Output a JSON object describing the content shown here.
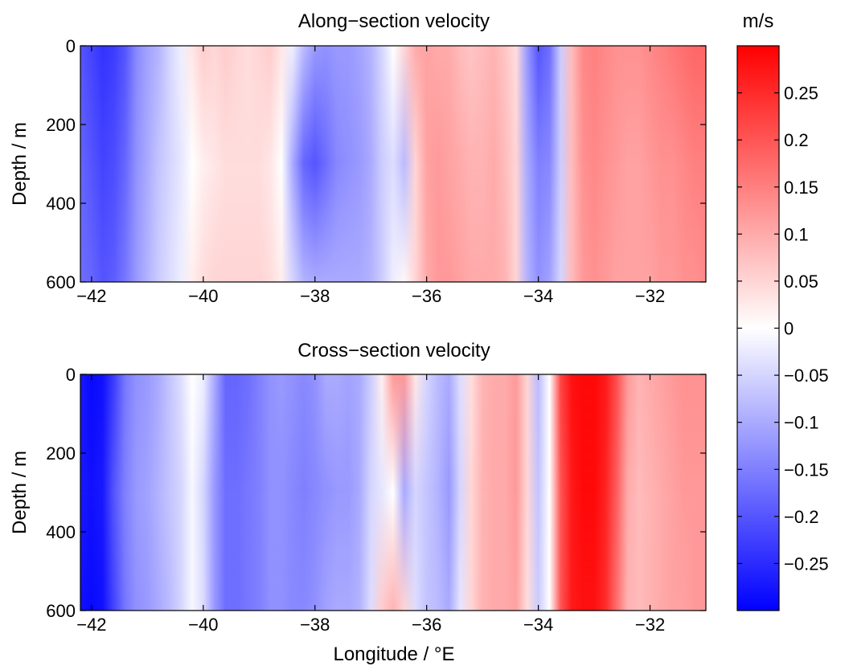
{
  "colorbar": {
    "unit_label": "m/s",
    "range": [
      -0.3,
      0.3
    ],
    "ticks": [
      -0.25,
      -0.2,
      -0.15,
      -0.1,
      -0.05,
      0,
      0.05,
      0.1,
      0.15,
      0.2,
      0.25
    ],
    "tick_labels": [
      "−0.25",
      "−0.2",
      "−0.15",
      "−0.1",
      "−0.05",
      "0",
      "0.05",
      "0.1",
      "0.15",
      "0.2",
      "0.25"
    ],
    "colors": {
      "negative_end": "#0000ff",
      "zero": "#ffffff",
      "positive_end": "#ff0000"
    }
  },
  "chart_data": [
    {
      "type": "heatmap",
      "title": "Along−section velocity",
      "xlabel": "",
      "ylabel": "Depth / m",
      "xlim": [
        -42.2,
        -31
      ],
      "ylim": [
        0,
        600
      ],
      "y_reversed": true,
      "xticks": [
        -42,
        -40,
        -38,
        -36,
        -34,
        -32
      ],
      "xtick_labels": [
        "−42",
        "−40",
        "−38",
        "−36",
        "−34",
        "−32"
      ],
      "yticks": [
        0,
        200,
        400,
        600
      ],
      "ytick_labels": [
        "0",
        "200",
        "400",
        "600"
      ],
      "x": [
        -42.2,
        -42.0,
        -41.8,
        -41.6,
        -41.4,
        -41.2,
        -41.0,
        -40.8,
        -40.6,
        -40.4,
        -40.2,
        -40.0,
        -39.8,
        -39.6,
        -39.4,
        -39.2,
        -39.0,
        -38.8,
        -38.6,
        -38.4,
        -38.2,
        -38.0,
        -37.8,
        -37.6,
        -37.4,
        -37.2,
        -37.0,
        -36.8,
        -36.6,
        -36.4,
        -36.2,
        -36.0,
        -35.8,
        -35.6,
        -35.4,
        -35.2,
        -35.0,
        -34.8,
        -34.6,
        -34.4,
        -34.2,
        -34.0,
        -33.8,
        -33.6,
        -33.4,
        -33.2,
        -33.0,
        -32.8,
        -32.6,
        -32.4,
        -32.2,
        -32.0,
        -31.8,
        -31.6,
        -31.4,
        -31.2,
        -31.0
      ],
      "depth": [
        0,
        300,
        600
      ],
      "values": [
        [
          -0.2,
          -0.22,
          -0.24,
          -0.23,
          -0.2,
          -0.14,
          -0.11,
          -0.09,
          -0.05,
          -0.02,
          0.03,
          0.06,
          0.05,
          0.06,
          0.05,
          0.04,
          0.05,
          0.06,
          0.03,
          -0.02,
          -0.08,
          -0.12,
          -0.13,
          -0.12,
          -0.12,
          -0.11,
          -0.09,
          -0.05,
          0.0,
          0.05,
          0.1,
          0.11,
          0.1,
          0.1,
          0.08,
          0.07,
          0.08,
          0.09,
          0.07,
          0.04,
          -0.12,
          -0.2,
          -0.17,
          -0.06,
          0.08,
          0.14,
          0.15,
          0.14,
          0.13,
          0.13,
          0.13,
          0.14,
          0.15,
          0.16,
          0.17,
          0.18,
          0.18
        ],
        [
          -0.18,
          -0.2,
          -0.22,
          -0.21,
          -0.18,
          -0.13,
          -0.1,
          -0.07,
          -0.05,
          -0.03,
          0.0,
          0.02,
          0.03,
          0.04,
          0.04,
          0.04,
          0.04,
          0.03,
          0.0,
          -0.1,
          -0.18,
          -0.2,
          -0.17,
          -0.14,
          -0.13,
          -0.12,
          -0.1,
          -0.06,
          -0.04,
          -0.08,
          0.05,
          0.11,
          0.12,
          0.11,
          0.1,
          0.09,
          0.09,
          0.1,
          0.08,
          0.05,
          -0.1,
          -0.15,
          -0.14,
          -0.06,
          0.08,
          0.13,
          0.14,
          0.13,
          0.12,
          0.11,
          0.11,
          0.12,
          0.13,
          0.13,
          0.14,
          0.15,
          0.15
        ],
        [
          -0.17,
          -0.18,
          -0.2,
          -0.19,
          -0.16,
          -0.12,
          -0.09,
          -0.06,
          -0.04,
          -0.02,
          0.02,
          0.04,
          0.05,
          0.05,
          0.05,
          0.05,
          0.05,
          0.04,
          0.02,
          -0.05,
          -0.09,
          -0.1,
          -0.1,
          -0.1,
          -0.1,
          -0.1,
          -0.09,
          -0.06,
          -0.02,
          0.01,
          0.05,
          0.1,
          0.12,
          0.12,
          0.11,
          0.1,
          0.1,
          0.1,
          0.09,
          0.05,
          -0.09,
          -0.13,
          -0.11,
          -0.05,
          0.08,
          0.12,
          0.13,
          0.12,
          0.11,
          0.11,
          0.11,
          0.11,
          0.12,
          0.12,
          0.13,
          0.13,
          0.14
        ]
      ]
    },
    {
      "type": "heatmap",
      "title": "Cross−section velocity",
      "xlabel": "Longitude / °E",
      "ylabel": "Depth / m",
      "xlim": [
        -42.2,
        -31
      ],
      "ylim": [
        0,
        600
      ],
      "y_reversed": true,
      "xticks": [
        -42,
        -40,
        -38,
        -36,
        -34,
        -32
      ],
      "xtick_labels": [
        "−42",
        "−40",
        "−38",
        "−36",
        "−34",
        "−32"
      ],
      "yticks": [
        0,
        200,
        400,
        600
      ],
      "ytick_labels": [
        "0",
        "200",
        "400",
        "600"
      ],
      "x": [
        -42.2,
        -42.0,
        -41.8,
        -41.6,
        -41.4,
        -41.2,
        -41.0,
        -40.8,
        -40.6,
        -40.4,
        -40.2,
        -40.0,
        -39.8,
        -39.6,
        -39.4,
        -39.2,
        -39.0,
        -38.8,
        -38.6,
        -38.4,
        -38.2,
        -38.0,
        -37.8,
        -37.6,
        -37.4,
        -37.2,
        -37.0,
        -36.8,
        -36.6,
        -36.4,
        -36.2,
        -36.0,
        -35.8,
        -35.6,
        -35.4,
        -35.2,
        -35.0,
        -34.8,
        -34.6,
        -34.4,
        -34.2,
        -34.0,
        -33.8,
        -33.6,
        -33.4,
        -33.2,
        -33.0,
        -32.8,
        -32.6,
        -32.4,
        -32.2,
        -32.0,
        -31.8,
        -31.6,
        -31.4,
        -31.2,
        -31.0
      ],
      "depth": [
        0,
        300,
        600
      ],
      "values": [
        [
          -0.27,
          -0.29,
          -0.28,
          -0.23,
          -0.16,
          -0.13,
          -0.12,
          -0.1,
          -0.07,
          -0.04,
          0.0,
          -0.02,
          -0.1,
          -0.18,
          -0.18,
          -0.17,
          -0.15,
          -0.13,
          -0.12,
          -0.13,
          -0.14,
          -0.13,
          -0.1,
          -0.1,
          -0.11,
          -0.1,
          -0.06,
          0.02,
          0.12,
          0.12,
          0.03,
          -0.05,
          -0.08,
          -0.1,
          -0.04,
          0.04,
          0.09,
          0.1,
          0.1,
          0.12,
          0.05,
          -0.08,
          0.0,
          0.22,
          0.28,
          0.29,
          0.29,
          0.27,
          0.21,
          0.12,
          0.09,
          0.1,
          0.11,
          0.12,
          0.13,
          0.13,
          0.13
        ],
        [
          -0.27,
          -0.28,
          -0.27,
          -0.2,
          -0.15,
          -0.12,
          -0.11,
          -0.09,
          -0.07,
          -0.05,
          -0.01,
          -0.05,
          -0.12,
          -0.17,
          -0.17,
          -0.16,
          -0.15,
          -0.13,
          -0.13,
          -0.14,
          -0.15,
          -0.14,
          -0.13,
          -0.12,
          -0.12,
          -0.1,
          -0.05,
          -0.03,
          0.0,
          -0.1,
          -0.05,
          -0.07,
          -0.09,
          -0.12,
          -0.05,
          0.05,
          0.09,
          0.1,
          0.1,
          0.12,
          0.05,
          -0.07,
          0.0,
          0.2,
          0.27,
          0.29,
          0.29,
          0.26,
          0.19,
          0.1,
          0.08,
          0.09,
          0.1,
          0.11,
          0.12,
          0.12,
          0.12
        ],
        [
          -0.28,
          -0.29,
          -0.28,
          -0.22,
          -0.16,
          -0.13,
          -0.12,
          -0.1,
          -0.08,
          -0.05,
          -0.01,
          -0.04,
          -0.12,
          -0.17,
          -0.17,
          -0.16,
          -0.15,
          -0.13,
          -0.13,
          -0.14,
          -0.14,
          -0.13,
          -0.11,
          -0.1,
          -0.1,
          -0.09,
          -0.04,
          0.06,
          0.09,
          0.05,
          -0.04,
          -0.07,
          -0.08,
          -0.1,
          -0.03,
          0.05,
          0.09,
          0.1,
          0.1,
          0.11,
          0.04,
          -0.06,
          0.0,
          0.2,
          0.27,
          0.28,
          0.28,
          0.25,
          0.17,
          0.09,
          0.08,
          0.09,
          0.1,
          0.11,
          0.11,
          0.12,
          0.12
        ]
      ]
    }
  ]
}
